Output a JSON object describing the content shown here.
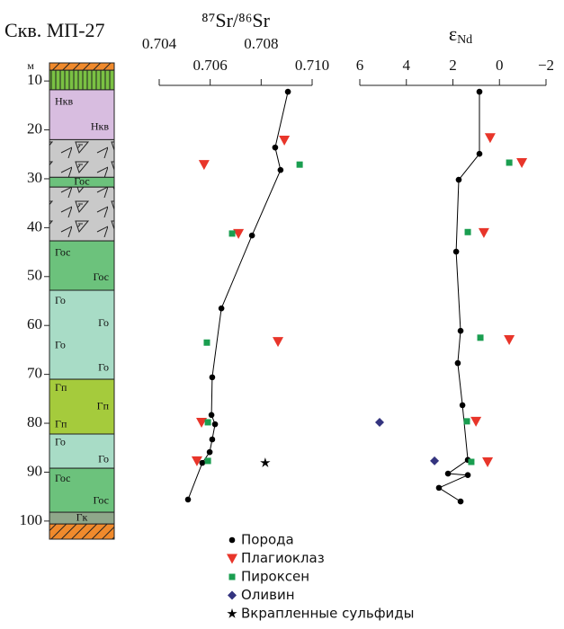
{
  "legend": [
    {
      "name": "Порода",
      "marker": "circle",
      "color": "#000000"
    },
    {
      "name": "Плагиоклаз",
      "marker": "triangle",
      "color": "#e8352a"
    },
    {
      "name": "Пироксен",
      "marker": "square",
      "color": "#1a9e50"
    },
    {
      "name": "Оливин",
      "marker": "diamond",
      "color": "#34347f"
    },
    {
      "name": "Вкрапленные сульфиды",
      "marker": "star",
      "color": "#000000"
    }
  ],
  "chart_data": [
    {
      "type": "column",
      "title": "Скв. МП-27",
      "y_label": "м",
      "ylim": [
        6.3,
        103.7
      ],
      "yticks": [
        10,
        20,
        30,
        40,
        50,
        60,
        70,
        80,
        90,
        100
      ],
      "layers": [
        {
          "top": 6.3,
          "bottom": 7.8,
          "color": "#f08a2c",
          "pattern": "hatch",
          "labels": []
        },
        {
          "top": 7.8,
          "bottom": 11.8,
          "color": "#7ac143",
          "pattern": "stripes",
          "labels": []
        },
        {
          "top": 11.8,
          "bottom": 22,
          "color": "#d8bde0",
          "labels": [
            "Нкв",
            "Нкв"
          ]
        },
        {
          "top": 22,
          "bottom": 29.7,
          "color": "#c9c9c9",
          "pattern": "triangles",
          "labels": []
        },
        {
          "top": 29.7,
          "bottom": 31.7,
          "color": "#6cc27c",
          "labels": [
            "Гос"
          ]
        },
        {
          "top": 31.7,
          "bottom": 42.7,
          "color": "#c9c9c9",
          "pattern": "triangles",
          "labels": []
        },
        {
          "top": 42.7,
          "bottom": 52.8,
          "color": "#6cc27c",
          "labels": [
            "Гос",
            "Гос"
          ]
        },
        {
          "top": 52.8,
          "bottom": 71,
          "color": "#a8dcc6",
          "labels": [
            "Го",
            "Го",
            "Го",
            "Го"
          ]
        },
        {
          "top": 71,
          "bottom": 82.2,
          "color": "#a5cb3c",
          "labels": [
            "Гп",
            "Гп",
            "Гп"
          ]
        },
        {
          "top": 82.2,
          "bottom": 89.2,
          "color": "#a8dcc6",
          "labels": [
            "Го",
            "Го"
          ]
        },
        {
          "top": 89.2,
          "bottom": 98.2,
          "color": "#6cc27c",
          "labels": [
            "Гос",
            "Гос"
          ]
        },
        {
          "top": 98.2,
          "bottom": 100.6,
          "color": "#8fa78a",
          "labels": [
            "Гк"
          ]
        },
        {
          "top": 100.6,
          "bottom": 103.7,
          "color": "#f08a2c",
          "pattern": "hatch",
          "labels": []
        }
      ]
    },
    {
      "type": "scatter",
      "title": "⁸⁷Sr/⁸⁶Sr",
      "xlim": [
        0.704,
        0.71
      ],
      "xticks": [
        0.704,
        0.706,
        0.708,
        {
          "value": 0.71,
          "label": "0.710"
        }
      ],
      "ylim": [
        6.3,
        103.7
      ],
      "series": [
        {
          "marker": "circle",
          "color": "#000000",
          "line": true,
          "x": [
            0.70905,
            0.70855,
            0.70876,
            0.70764,
            0.70644,
            0.70608,
            0.70605,
            0.70619,
            0.70608,
            0.70598,
            0.70569,
            0.70513
          ],
          "y": [
            12.2,
            23.6,
            28.2,
            41.6,
            56.5,
            70.6,
            78.3,
            80.2,
            83.3,
            85.9,
            88.1,
            95.6
          ]
        },
        {
          "marker": "triangle",
          "color": "#e8352a",
          "x": [
            0.70891,
            0.70576,
            0.70711,
            0.70866,
            0.70566,
            0.70548
          ],
          "y": [
            22.1,
            27.1,
            41.2,
            63.3,
            79.8,
            87.7
          ]
        },
        {
          "marker": "square",
          "color": "#1a9e50",
          "x": [
            0.70951,
            0.70686,
            0.70587,
            0.70591,
            0.70591
          ],
          "y": [
            27.1,
            41.2,
            63.5,
            79.8,
            87.7
          ]
        },
        {
          "marker": "star",
          "color": "#000000",
          "x": [
            0.70816
          ],
          "y": [
            88.1
          ]
        }
      ]
    },
    {
      "type": "scatter",
      "title": "ε",
      "title_subscript": "Nd",
      "xlim": [
        6,
        -2
      ],
      "xticks": [
        6,
        4,
        2,
        0,
        {
          "value": -2,
          "label": "−2"
        }
      ],
      "ylim": [
        6.3,
        103.7
      ],
      "series": [
        {
          "marker": "circle",
          "color": "#000000",
          "line": true,
          "x": [
            0.86,
            0.86,
            1.75,
            1.86,
            1.67,
            1.79,
            1.59,
            1.36,
            2.21,
            1.36,
            2.6,
            1.67
          ],
          "y": [
            12.2,
            24.9,
            30.2,
            44.9,
            61.1,
            67.7,
            76.3,
            87.5,
            90.3,
            90.6,
            93.2,
            96.0
          ]
        },
        {
          "marker": "triangle",
          "color": "#e8352a",
          "x": [
            0.4,
            -0.96,
            0.67,
            -0.42,
            1.01,
            0.51
          ],
          "y": [
            21.6,
            26.7,
            41.0,
            62.9,
            79.6,
            87.9
          ]
        },
        {
          "marker": "square",
          "color": "#1a9e50",
          "x": [
            -0.42,
            1.36,
            0.82,
            1.4,
            1.21
          ],
          "y": [
            26.7,
            40.9,
            62.5,
            79.6,
            87.9
          ]
        },
        {
          "marker": "diamond",
          "color": "#34347f",
          "x": [
            5.15,
            2.79
          ],
          "y": [
            79.8,
            87.7
          ]
        }
      ]
    }
  ]
}
